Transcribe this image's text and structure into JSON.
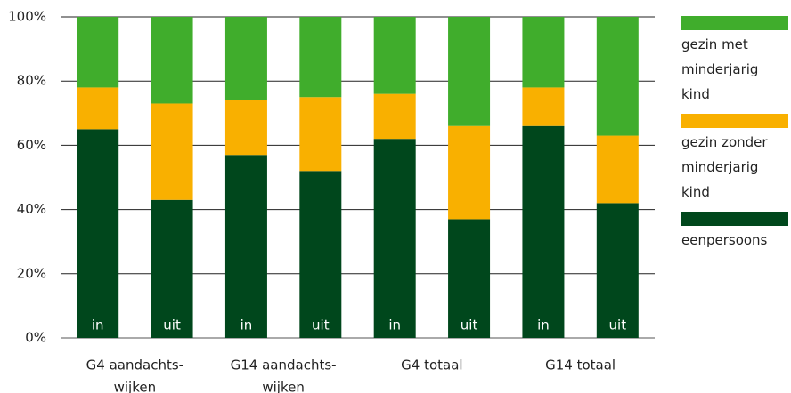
{
  "chart_data": {
    "type": "stacked_bar",
    "categories": [
      "in",
      "uit",
      "in",
      "uit",
      "in",
      "uit",
      "in",
      "uit"
    ],
    "group_labels": [
      [
        "G4 aandachts-",
        "wijken"
      ],
      [
        "G14 aandachts-",
        "wijken"
      ],
      [
        "G4 totaal"
      ],
      [
        "G14 totaal"
      ]
    ],
    "series": [
      {
        "name": "eenpersoons",
        "color": "#00471c",
        "values": [
          65,
          43,
          57,
          52,
          62,
          37,
          66,
          42
        ]
      },
      {
        "name": "gezin zonder minderjarig kind",
        "color": "#f9b000",
        "values": [
          13,
          30,
          17,
          23,
          14,
          29,
          12,
          21
        ]
      },
      {
        "name": "gezin met minderjarig kind",
        "color": "#40ad2c",
        "values": [
          22,
          27,
          26,
          25,
          24,
          34,
          22,
          37
        ]
      }
    ],
    "ylim": [
      0,
      100
    ],
    "yticks": [
      {
        "value": 0,
        "label": "0%"
      },
      {
        "value": 20,
        "label": "20%"
      },
      {
        "value": 40,
        "label": "40%"
      },
      {
        "value": 60,
        "label": "60%"
      },
      {
        "value": 80,
        "label": "80%"
      },
      {
        "value": 100,
        "label": "100%"
      }
    ],
    "grid": true
  }
}
